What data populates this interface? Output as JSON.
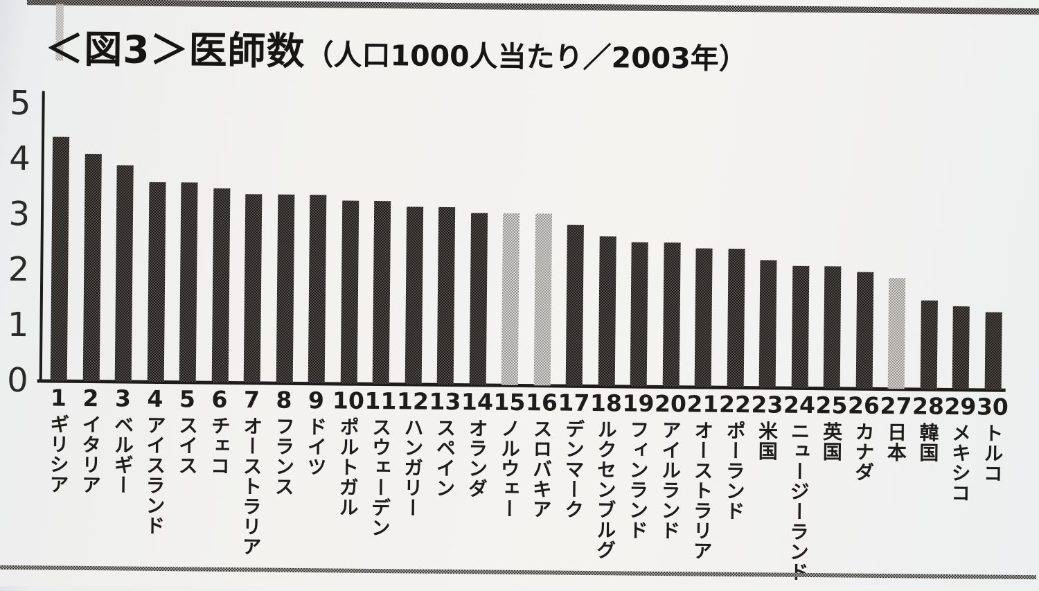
{
  "title": {
    "prefix": "＜図3＞",
    "main": "医師数",
    "paren": "（人口1000人当たり／2003年）"
  },
  "chart_data": {
    "type": "bar",
    "title": "＜図3＞医師数（人口1000人当たり／2003年）",
    "ylabel": "",
    "xlabel": "",
    "ylim": [
      0,
      5
    ],
    "yticks": [
      0,
      1,
      2,
      3,
      4,
      5
    ],
    "grid": false,
    "legend_position": "none",
    "colors": {
      "ink": "#1d1c1a",
      "bar_halftone": [
        "#141311",
        "#5a5753"
      ],
      "highlight_halftone": [
        "#8d8b88",
        "#e3e1de"
      ]
    },
    "bars": [
      {
        "rank": 1,
        "label": "ギリシア",
        "value": 4.4,
        "highlighted": false
      },
      {
        "rank": 2,
        "label": "イタリア",
        "value": 4.1,
        "highlighted": false
      },
      {
        "rank": 3,
        "label": "ベルギー",
        "value": 3.9,
        "highlighted": false
      },
      {
        "rank": 4,
        "label": "アイスランド",
        "value": 3.6,
        "highlighted": false
      },
      {
        "rank": 5,
        "label": "スイス",
        "value": 3.6,
        "highlighted": false
      },
      {
        "rank": 6,
        "label": "チェコ",
        "value": 3.5,
        "highlighted": false
      },
      {
        "rank": 7,
        "label": "オーストラリア",
        "value": 3.4,
        "highlighted": false
      },
      {
        "rank": 8,
        "label": "フランス",
        "value": 3.4,
        "highlighted": false
      },
      {
        "rank": 9,
        "label": "ドイツ",
        "value": 3.4,
        "highlighted": false
      },
      {
        "rank": 10,
        "label": "ポルトガル",
        "value": 3.3,
        "highlighted": false
      },
      {
        "rank": 11,
        "label": "スウェーデン",
        "value": 3.3,
        "highlighted": false
      },
      {
        "rank": 12,
        "label": "ハンガリー",
        "value": 3.2,
        "highlighted": false
      },
      {
        "rank": 13,
        "label": "スペイン",
        "value": 3.2,
        "highlighted": false
      },
      {
        "rank": 14,
        "label": "オランダ",
        "value": 3.1,
        "highlighted": false
      },
      {
        "rank": 15,
        "label": "ノルウェー",
        "value": 3.1,
        "highlighted": true
      },
      {
        "rank": 16,
        "label": "スロバキア",
        "value": 3.1,
        "highlighted": true
      },
      {
        "rank": 17,
        "label": "デンマーク",
        "value": 2.9,
        "highlighted": false
      },
      {
        "rank": 18,
        "label": "ルクセンブルグ",
        "value": 2.7,
        "highlighted": false
      },
      {
        "rank": 19,
        "label": "フィンランド",
        "value": 2.6,
        "highlighted": false
      },
      {
        "rank": 20,
        "label": "アイルランド",
        "value": 2.6,
        "highlighted": false
      },
      {
        "rank": 21,
        "label": "オーストラリア",
        "value": 2.5,
        "highlighted": false
      },
      {
        "rank": 22,
        "label": "ポーランド",
        "value": 2.5,
        "highlighted": false
      },
      {
        "rank": 23,
        "label": "米国",
        "value": 2.3,
        "highlighted": false
      },
      {
        "rank": 24,
        "label": "ニュージーランド",
        "value": 2.2,
        "highlighted": false
      },
      {
        "rank": 25,
        "label": "英国",
        "value": 2.2,
        "highlighted": false
      },
      {
        "rank": 26,
        "label": "カナダ",
        "value": 2.1,
        "highlighted": false
      },
      {
        "rank": 27,
        "label": "日本",
        "value": 2.0,
        "highlighted": true
      },
      {
        "rank": 28,
        "label": "韓国",
        "value": 1.6,
        "highlighted": false
      },
      {
        "rank": 29,
        "label": "メキシコ",
        "value": 1.5,
        "highlighted": false
      },
      {
        "rank": 30,
        "label": "トルコ",
        "value": 1.4,
        "highlighted": false
      }
    ]
  }
}
